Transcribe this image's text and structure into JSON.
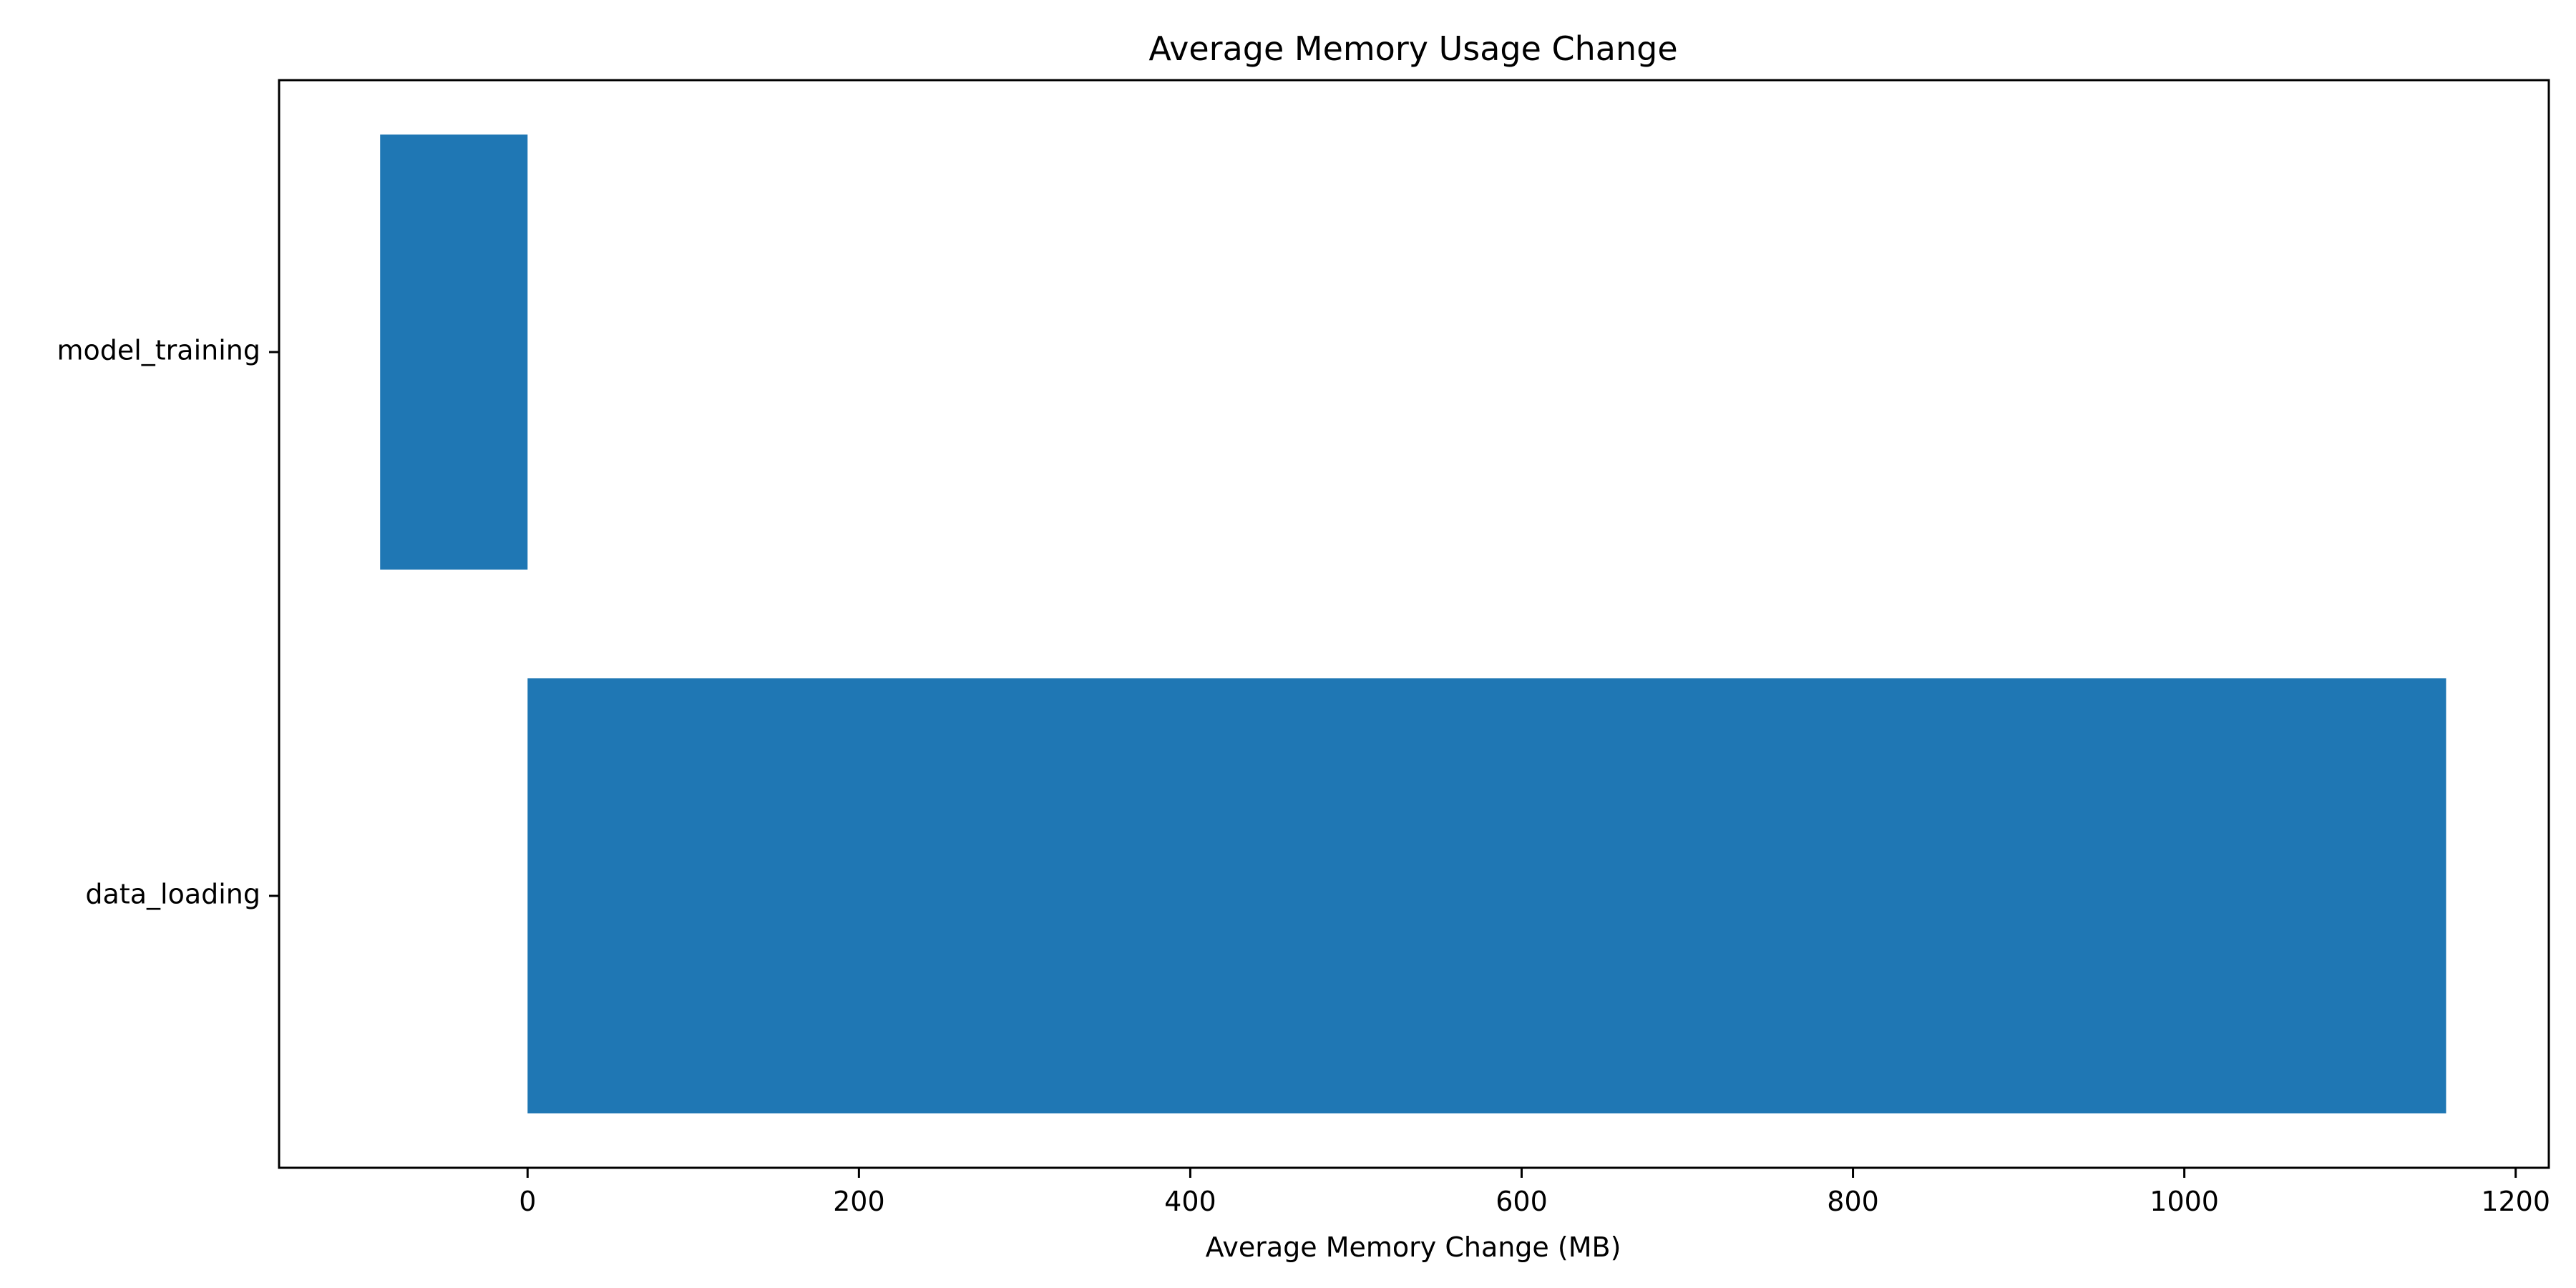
{
  "chart_data": {
    "type": "bar",
    "orientation": "horizontal",
    "title": "Average Memory Usage Change",
    "xlabel": "Average Memory Change (MB)",
    "ylabel": "",
    "categories": [
      "model_training",
      "data_loading"
    ],
    "values": [
      -89,
      1158
    ],
    "xlim": [
      -150,
      1220
    ],
    "xticks": [
      0,
      200,
      400,
      600,
      800,
      1000,
      1200
    ],
    "grid": false,
    "legend": "none",
    "bar_color": "#1f77b4"
  }
}
